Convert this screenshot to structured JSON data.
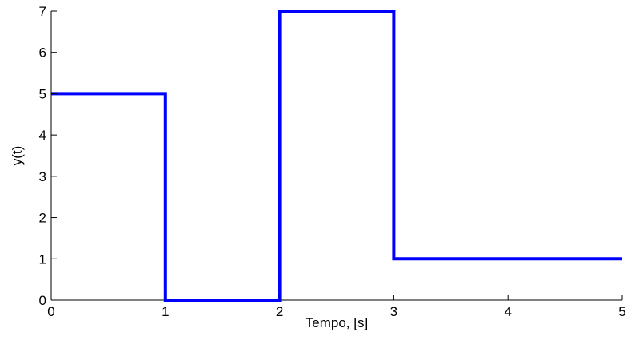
{
  "chart_data": {
    "type": "line",
    "title": "",
    "xlabel": "Tempo, [s]",
    "ylabel": "y(t)",
    "xlim": [
      0,
      5
    ],
    "ylim": [
      0,
      7
    ],
    "xticks": [
      "0",
      "1",
      "2",
      "3",
      "4",
      "5"
    ],
    "yticks": [
      "0",
      "1",
      "2",
      "3",
      "4",
      "5",
      "6",
      "7"
    ],
    "grid": false,
    "legend": "none",
    "series": [
      {
        "color": "#0000ff",
        "step": true,
        "x": [
          0,
          1,
          1,
          2,
          2,
          3,
          3,
          5
        ],
        "y": [
          5,
          5,
          0,
          0,
          7,
          7,
          1,
          1
        ]
      }
    ]
  }
}
